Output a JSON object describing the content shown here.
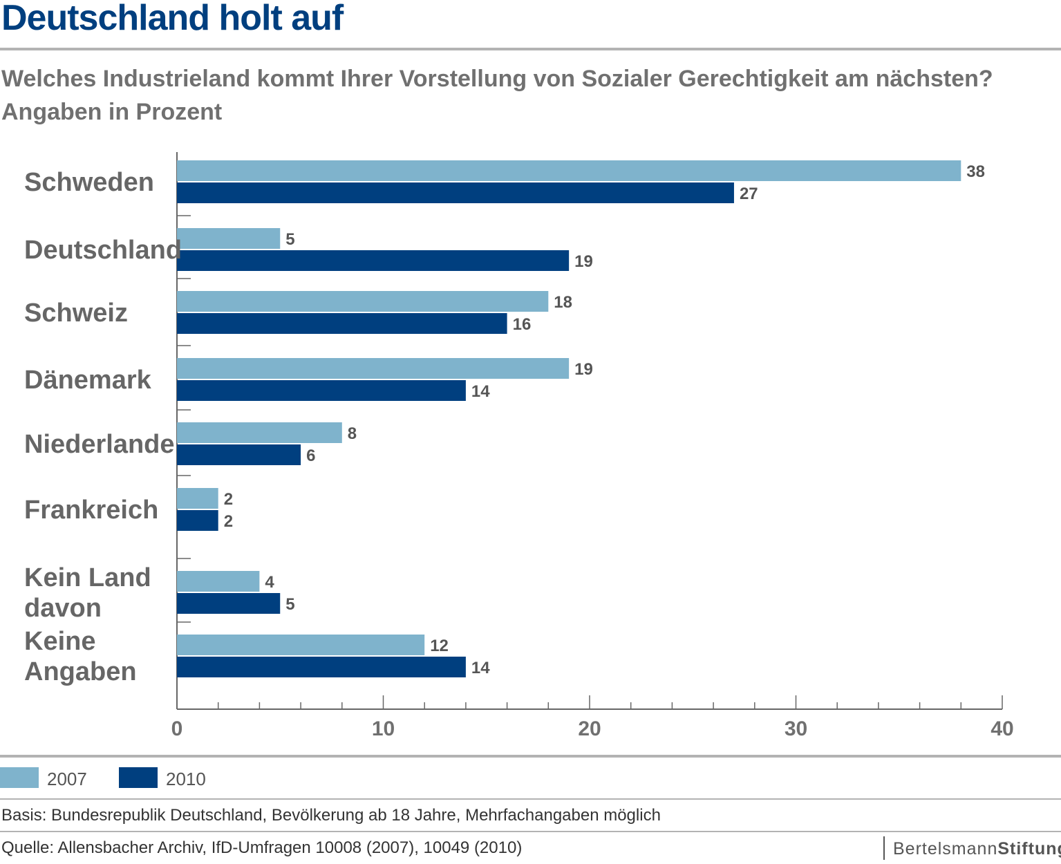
{
  "title": "Deutschland holt auf",
  "subtitle": {
    "line1": "Welches Industrieland kommt Ihrer Vorstellung von Sozialer Gerechtigkeit am nächsten?",
    "line2": "Angaben in Prozent"
  },
  "colors": {
    "series_2007": "#7fb3cc",
    "series_2010": "#003f7f",
    "title": "#003f7f"
  },
  "chart_data": {
    "type": "bar",
    "orientation": "horizontal",
    "categories": [
      [
        "Schweden"
      ],
      [
        "Deutschland"
      ],
      [
        "Schweiz"
      ],
      [
        "Dänemark"
      ],
      [
        "Niederlande"
      ],
      [
        "Frankreich"
      ],
      [
        "Kein Land",
        "davon"
      ],
      [
        "Keine",
        "Angaben"
      ]
    ],
    "series": [
      {
        "name": "2007",
        "values": [
          38,
          5,
          18,
          19,
          8,
          2,
          4,
          12
        ]
      },
      {
        "name": "2010",
        "values": [
          27,
          19,
          16,
          14,
          6,
          2,
          5,
          14
        ]
      }
    ],
    "xlim": [
      0,
      40
    ],
    "xticks": [
      0,
      10,
      20,
      30,
      40
    ],
    "xlabel": "",
    "ylabel": "",
    "legend_position": "bottom-left"
  },
  "legend": {
    "label_2007": "2007",
    "label_2010": "2010"
  },
  "footer": {
    "basis": "Basis: Bundesrepublik Deutschland, Bevölkerung ab 18 Jahre, Mehrfachangaben möglich",
    "source": "Quelle: Allensbacher Archiv, IfD-Umfragen 10008 (2007), 10049 (2010)",
    "logo_part1": "Bertelsmann",
    "logo_part2": "Stiftung"
  }
}
